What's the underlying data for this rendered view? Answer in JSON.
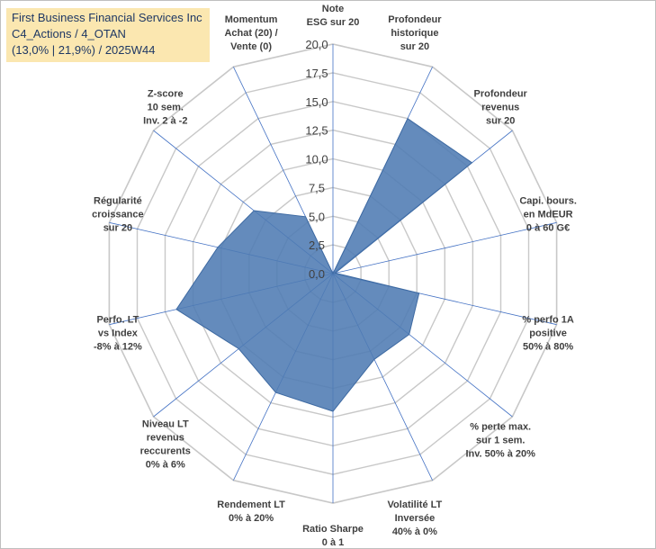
{
  "title": {
    "line1": "First Business Financial Services Inc",
    "line2": "C4_Actions / 4_OTAN",
    "line3": "(13,0% | 21,9%) / 2025W44"
  },
  "colors": {
    "fill": "#4f7bb3",
    "stroke": "#3e6aa2",
    "grid": "#c8c8c8",
    "spoke": "#4472c4",
    "title_bg": "#fbe7b0"
  },
  "chart_data": {
    "type": "radar",
    "title": "First Business Financial Services Inc",
    "rlim": [
      0,
      20
    ],
    "ticks": [
      "0,0",
      "2,5",
      "5,0",
      "7,5",
      "10,0",
      "12,5",
      "15,0",
      "17,5",
      "20,0"
    ],
    "axes": [
      {
        "label": [
          "Note",
          "ESG sur 20"
        ],
        "value": 0
      },
      {
        "label": [
          "Profondeur",
          "historique",
          "sur 20"
        ],
        "value": 15
      },
      {
        "label": [
          "Profondeur",
          "revenus",
          "sur 20"
        ],
        "value": 15.5
      },
      {
        "label": [
          "Capi. bours.",
          "en MdEUR",
          "0 à 60 G€"
        ],
        "value": 0.2
      },
      {
        "label": [
          "% perfo 1A",
          "positive",
          "50% à 80%"
        ],
        "value": 7.7
      },
      {
        "label": [
          "% perte max.",
          "sur 1 sem.",
          "Inv. 50% à 20%"
        ],
        "value": 8.5
      },
      {
        "label": [
          "Volatilité LT",
          "Inversée",
          "40% à 0%"
        ],
        "value": 8.3
      },
      {
        "label": [
          "Ratio Sharpe",
          "0 à 1"
        ],
        "value": 12
      },
      {
        "label": [
          "Rendement LT",
          "0% à 20%"
        ],
        "value": 11.5
      },
      {
        "label": [
          "Niveau LT",
          "revenus",
          "reccurents",
          "0% à 6%"
        ],
        "value": 10.5
      },
      {
        "label": [
          "Perfo. LT",
          "vs Index",
          "-8% à 12%"
        ],
        "value": 14
      },
      {
        "label": [
          "Régularité",
          "croissance",
          "sur 20"
        ],
        "value": 10.3
      },
      {
        "label": [
          "Z-score",
          "10 sem.",
          "Inv. 2 à -2"
        ],
        "value": 8.8
      },
      {
        "label": [
          "Momentum",
          "Achat (20) /",
          "Vente (0)"
        ],
        "value": 5.5
      }
    ]
  }
}
